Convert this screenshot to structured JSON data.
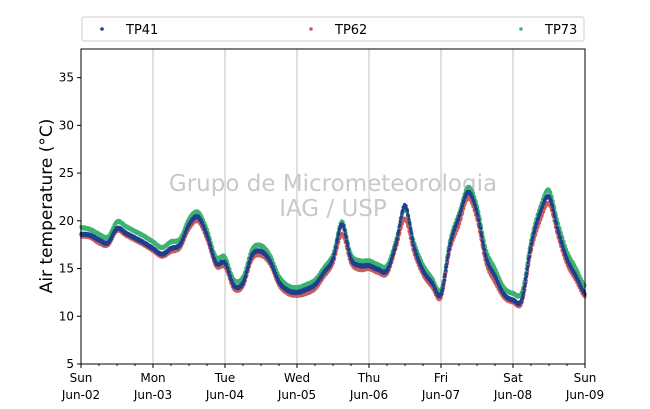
{
  "chart_data": {
    "type": "line",
    "title": "",
    "xlabel": "",
    "ylabel": "Air temperature (°C)",
    "ylim": [
      5,
      38
    ],
    "yticks": [
      5,
      10,
      15,
      20,
      25,
      30,
      35
    ],
    "xlim": [
      "2024-06-02 00:00",
      "2024-06-09 00:00"
    ],
    "xticks": [
      {
        "day": "Sun",
        "date": "Jun-02"
      },
      {
        "day": "Mon",
        "date": "Jun-03"
      },
      {
        "day": "Tue",
        "date": "Jun-04"
      },
      {
        "day": "Wed",
        "date": "Jun-05"
      },
      {
        "day": "Thu",
        "date": "Jun-06"
      },
      {
        "day": "Fri",
        "date": "Jun-07"
      },
      {
        "day": "Sat",
        "date": "Jun-08"
      },
      {
        "day": "Sun",
        "date": "Jun-09"
      }
    ],
    "grid": "vertical",
    "legend": "top",
    "watermark": [
      "Grupo de Micrometeorologia",
      "IAG / USP"
    ],
    "x": [
      "2024-06-02 00:00",
      "2024-06-02 03:00",
      "2024-06-02 06:00",
      "2024-06-02 09:00",
      "2024-06-02 12:00",
      "2024-06-02 15:00",
      "2024-06-02 18:00",
      "2024-06-02 21:00",
      "2024-06-03 00:00",
      "2024-06-03 03:00",
      "2024-06-03 06:00",
      "2024-06-03 09:00",
      "2024-06-03 12:00",
      "2024-06-03 15:00",
      "2024-06-03 18:00",
      "2024-06-03 21:00",
      "2024-06-04 00:00",
      "2024-06-04 03:00",
      "2024-06-04 06:00",
      "2024-06-04 09:00",
      "2024-06-04 12:00",
      "2024-06-04 15:00",
      "2024-06-04 18:00",
      "2024-06-04 21:00",
      "2024-06-05 00:00",
      "2024-06-05 03:00",
      "2024-06-05 06:00",
      "2024-06-05 09:00",
      "2024-06-05 12:00",
      "2024-06-05 15:00",
      "2024-06-05 18:00",
      "2024-06-05 21:00",
      "2024-06-06 00:00",
      "2024-06-06 03:00",
      "2024-06-06 06:00",
      "2024-06-06 09:00",
      "2024-06-06 12:00",
      "2024-06-06 15:00",
      "2024-06-06 18:00",
      "2024-06-06 21:00",
      "2024-06-07 00:00",
      "2024-06-07 03:00",
      "2024-06-07 06:00",
      "2024-06-07 09:00",
      "2024-06-07 12:00",
      "2024-06-07 15:00",
      "2024-06-07 18:00",
      "2024-06-07 21:00",
      "2024-06-08 00:00",
      "2024-06-08 03:00",
      "2024-06-08 06:00",
      "2024-06-08 09:00",
      "2024-06-08 12:00",
      "2024-06-08 15:00",
      "2024-06-08 18:00",
      "2024-06-08 21:00",
      "2024-06-09 00:00"
    ],
    "series": [
      {
        "name": "TP41",
        "color": "#1f3f8f",
        "values": [
          18.6,
          18.5,
          18.0,
          17.7,
          19.2,
          18.7,
          18.2,
          17.7,
          17.1,
          16.5,
          17.1,
          17.5,
          19.6,
          20.4,
          18.5,
          15.6,
          15.6,
          13.2,
          13.5,
          16.4,
          16.8,
          15.8,
          13.6,
          12.7,
          12.5,
          12.8,
          13.3,
          14.6,
          16.0,
          19.6,
          16.0,
          15.3,
          15.3,
          14.9,
          14.8,
          17.6,
          21.6,
          17.3,
          14.8,
          13.5,
          12.3,
          17.5,
          20.4,
          23.0,
          20.9,
          16.2,
          14.2,
          12.3,
          11.7,
          11.8,
          17.4,
          20.8,
          22.5,
          19.0,
          16.0,
          14.2,
          12.4
        ]
      },
      {
        "name": "TP62",
        "color": "#cd5c5c",
        "values": [
          18.4,
          18.3,
          17.7,
          17.5,
          19.0,
          18.5,
          18.0,
          17.5,
          16.9,
          16.3,
          16.8,
          17.2,
          19.2,
          20.0,
          18.1,
          15.3,
          15.2,
          12.9,
          13.2,
          16.0,
          16.4,
          15.5,
          13.3,
          12.4,
          12.2,
          12.4,
          12.9,
          14.2,
          15.6,
          18.6,
          15.6,
          14.9,
          15.0,
          14.6,
          14.5,
          17.2,
          20.2,
          16.7,
          14.4,
          13.1,
          12.0,
          17.0,
          19.6,
          22.4,
          20.2,
          15.6,
          13.6,
          12.0,
          11.5,
          11.5,
          16.8,
          20.0,
          21.8,
          18.4,
          15.5,
          13.8,
          12.1
        ]
      },
      {
        "name": "TP73",
        "color": "#3cb371",
        "values": [
          19.3,
          19.1,
          18.6,
          18.3,
          19.9,
          19.4,
          18.9,
          18.4,
          17.8,
          17.2,
          17.8,
          18.1,
          20.2,
          20.9,
          19.1,
          16.2,
          16.2,
          13.8,
          14.1,
          17.0,
          17.4,
          16.4,
          14.2,
          13.2,
          13.0,
          13.3,
          13.8,
          15.1,
          16.5,
          19.9,
          16.5,
          15.8,
          15.8,
          15.4,
          15.3,
          18.0,
          21.2,
          17.8,
          15.4,
          14.0,
          12.8,
          18.0,
          20.8,
          23.5,
          21.6,
          17.0,
          15.0,
          13.0,
          12.4,
          12.6,
          18.0,
          21.4,
          23.2,
          19.8,
          16.8,
          15.0,
          13.2
        ]
      }
    ]
  }
}
